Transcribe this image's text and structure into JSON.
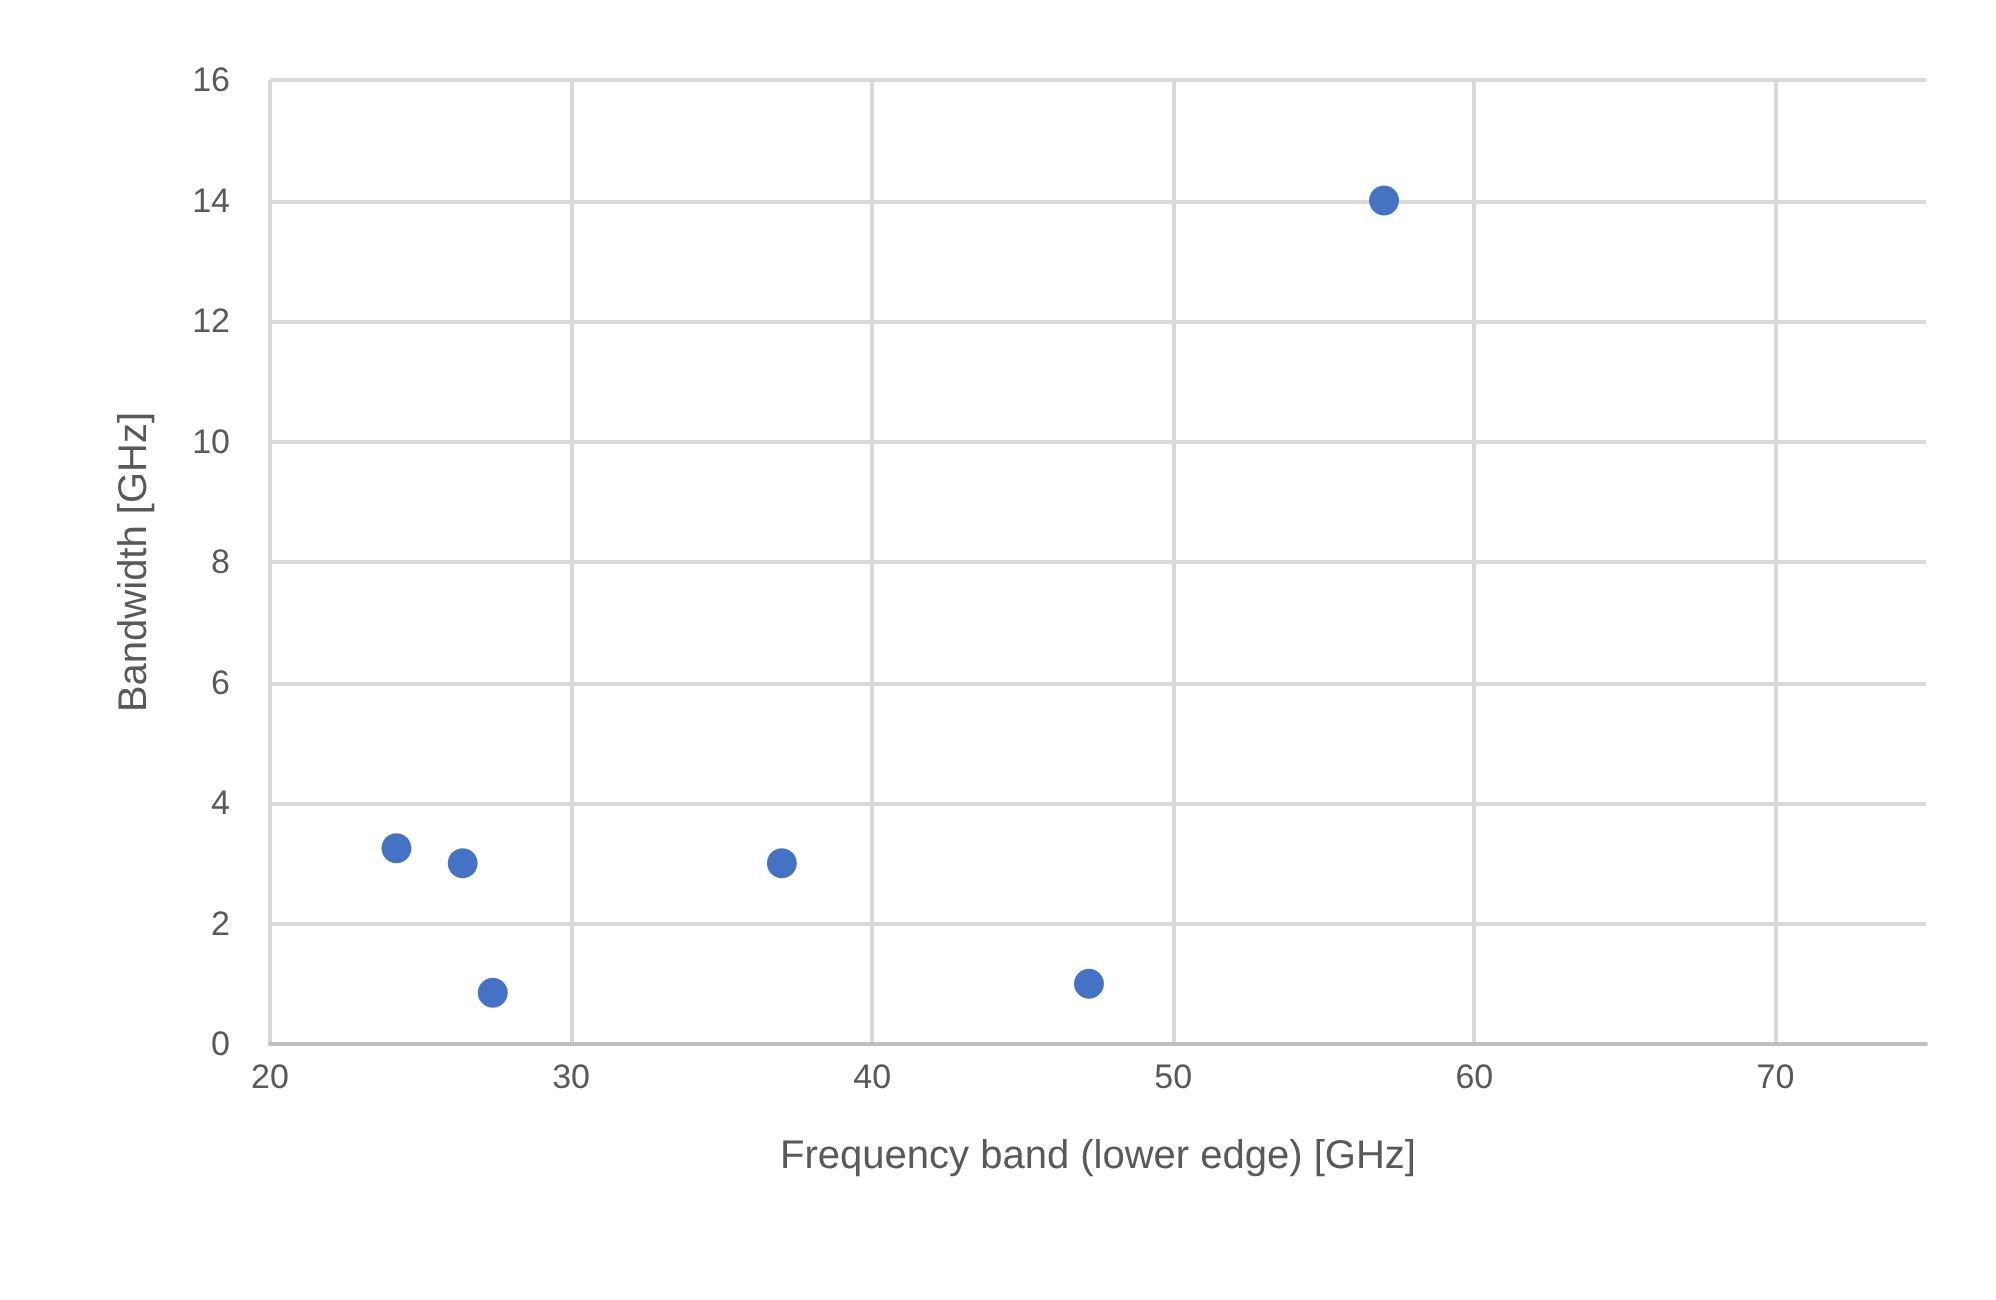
{
  "chart_data": {
    "type": "scatter",
    "xlabel": "Frequency band (lower edge) [GHz]",
    "ylabel": "Bandwidth [GHz]",
    "x": [
      24.2,
      26.4,
      27.4,
      37,
      47.2,
      57
    ],
    "series": [
      {
        "color": "#4472c4",
        "values": [
          3.25,
          3,
          0.85,
          3,
          1,
          14
        ]
      }
    ],
    "xlim": [
      20,
      75
    ],
    "xticks": [
      20,
      30,
      40,
      50,
      60,
      70
    ],
    "ylim": [
      0,
      16
    ],
    "yticks": [
      0,
      2,
      4,
      6,
      8,
      10,
      12,
      14,
      16
    ],
    "grid": true,
    "marker": "circle"
  }
}
